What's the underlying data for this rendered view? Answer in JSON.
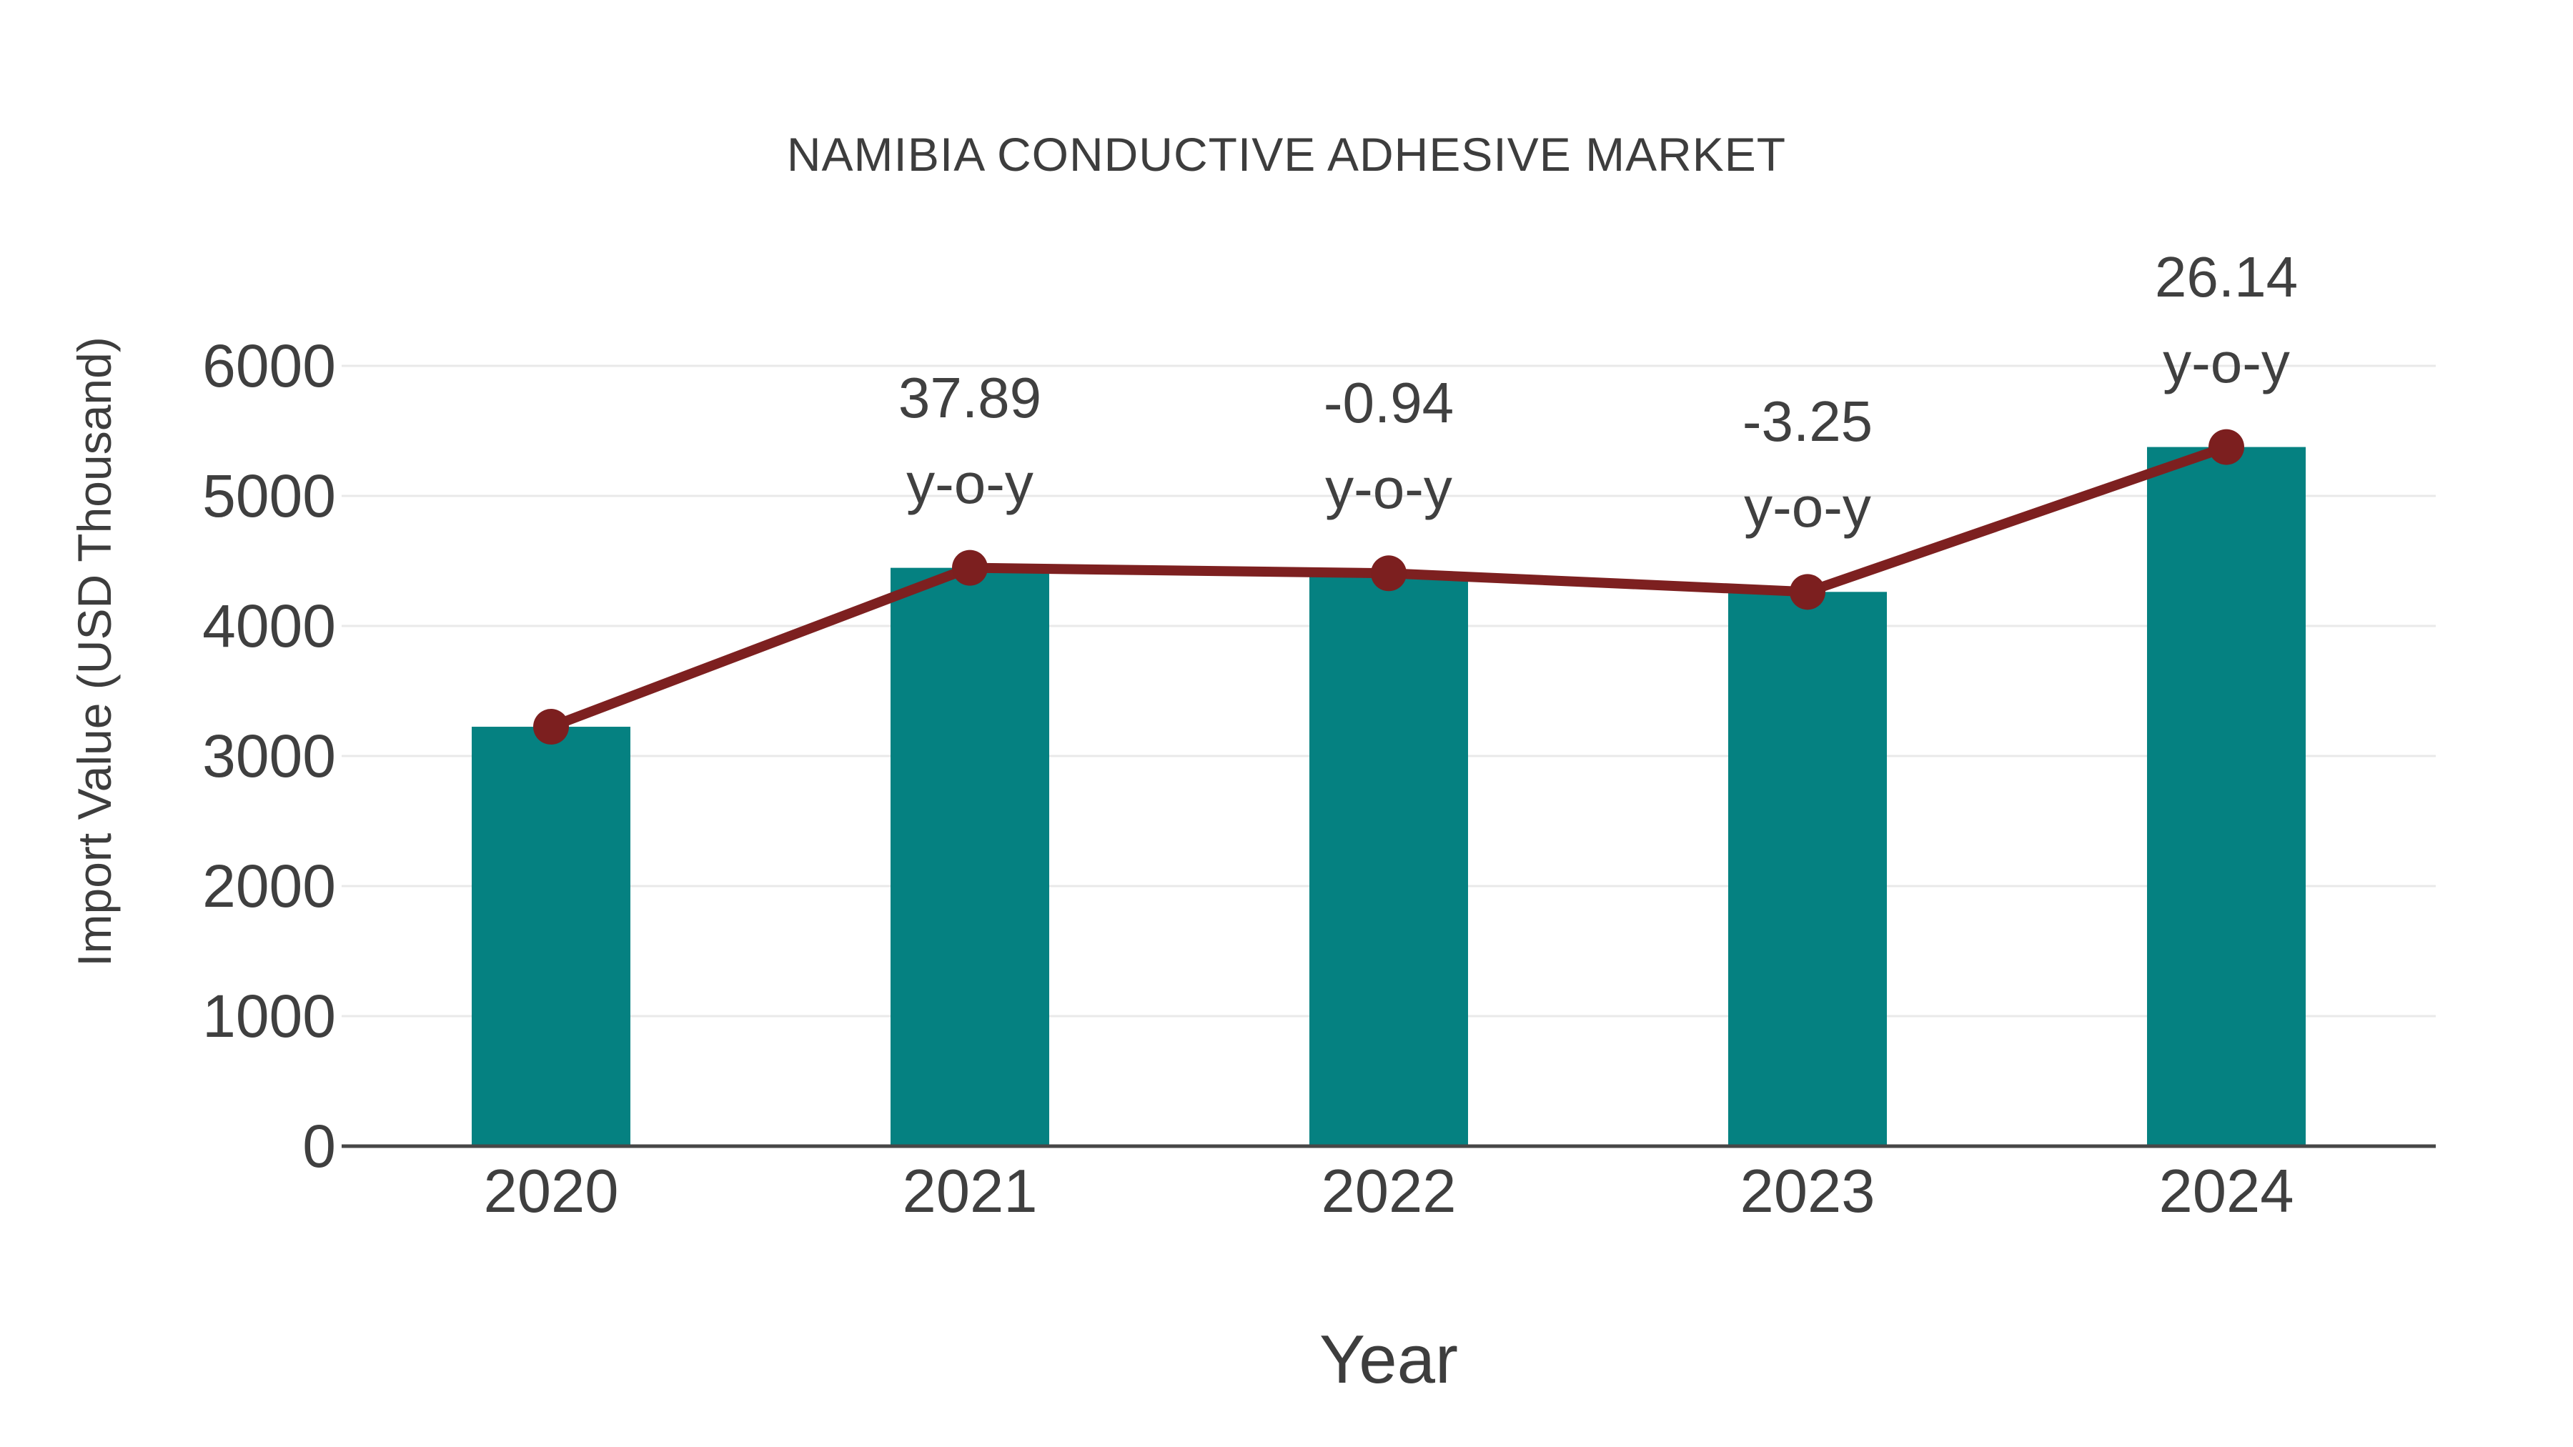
{
  "chart_data": {
    "type": "bar",
    "title": "NAMIBIA CONDUCTIVE ADHESIVE MARKET",
    "xlabel": "Year",
    "ylabel": "Import Value (USD Thousand)",
    "categories": [
      "2020",
      "2021",
      "2022",
      "2023",
      "2024"
    ],
    "series": [
      {
        "name": "Import Value bars",
        "type": "bar",
        "values": [
          3225,
          4447,
          4405,
          4262,
          5376
        ]
      },
      {
        "name": "Import Value trend line",
        "type": "line",
        "values": [
          3225,
          4447,
          4405,
          4262,
          5376
        ]
      }
    ],
    "point_labels": [
      {
        "category": "2021",
        "value": "37.89",
        "suffix": "y-o-y"
      },
      {
        "category": "2022",
        "value": "-0.94",
        "suffix": "y-o-y"
      },
      {
        "category": "2023",
        "value": "-3.25",
        "suffix": "y-o-y"
      },
      {
        "category": "2024",
        "value": "26.14",
        "suffix": "y-o-y"
      }
    ],
    "yticks": [
      "0",
      "1000",
      "2000",
      "3000",
      "4000",
      "5000",
      "6000"
    ],
    "ylim": [
      0,
      6000
    ],
    "grid": true,
    "legend_position": "none",
    "colors": {
      "bar": "#058181",
      "line": "#7d2020",
      "marker": "#7c1f1f",
      "text": "#3d3d3d",
      "grid": "#e9e9e9",
      "axis": "#474747",
      "background": "#ffffff"
    }
  }
}
